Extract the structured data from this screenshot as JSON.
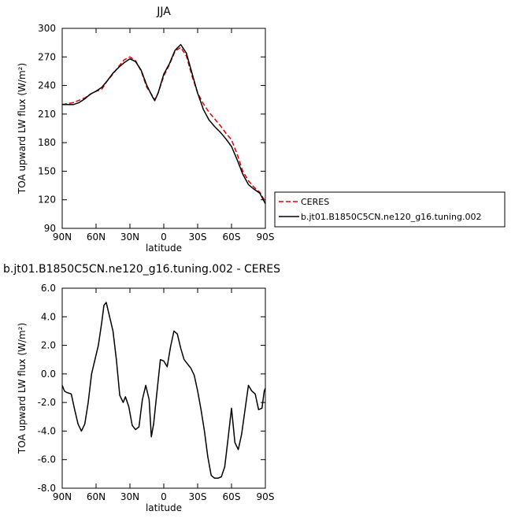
{
  "chart_data": [
    {
      "type": "line",
      "title": "JJA",
      "xlabel": "latitude",
      "ylabel": "TOA upward LW flux (W/m²)",
      "ylim": [
        90,
        300
      ],
      "xlim": [
        90,
        -90
      ],
      "x_ticks": [
        90,
        60,
        30,
        0,
        -30,
        -60,
        -90
      ],
      "x_tick_labels": [
        "90N",
        "60N",
        "30N",
        "0",
        "30S",
        "60S",
        "90S"
      ],
      "y_ticks": [
        90,
        120,
        150,
        180,
        210,
        240,
        270,
        300
      ],
      "y_tick_labels": [
        "90",
        "120",
        "150",
        "180",
        "210",
        "240",
        "270",
        "300"
      ],
      "legend_placement": "right",
      "series": [
        {
          "name": "CERES",
          "color": "#e00000",
          "dash": true,
          "x": [
            90,
            80,
            70,
            62,
            55,
            50,
            45,
            40,
            35,
            30,
            25,
            20,
            15,
            10,
            8,
            5,
            0,
            -5,
            -10,
            -15,
            -20,
            -25,
            -30,
            -35,
            -40,
            -45,
            -50,
            -55,
            -60,
            -65,
            -70,
            -75,
            -80,
            -85,
            -90
          ],
          "y": [
            220,
            222,
            227,
            233,
            236,
            245,
            252,
            260,
            267,
            270,
            266,
            255,
            238,
            229,
            225,
            232,
            250,
            262,
            276,
            280,
            271,
            250,
            232,
            221,
            212,
            205,
            198,
            190,
            183,
            168,
            150,
            140,
            133,
            128,
            118
          ]
        },
        {
          "name": "b.jt01.B1850C5CN.ne120_g16.tuning.002",
          "color": "#000000",
          "dash": false,
          "x": [
            90,
            80,
            75,
            70,
            65,
            60,
            55,
            50,
            45,
            40,
            35,
            30,
            25,
            20,
            15,
            10,
            8,
            5,
            0,
            -5,
            -10,
            -15,
            -20,
            -25,
            -30,
            -35,
            -40,
            -45,
            -50,
            -55,
            -60,
            -65,
            -70,
            -75,
            -80,
            -85,
            -90
          ],
          "y": [
            220,
            220,
            222,
            226,
            231,
            234,
            238,
            245,
            253,
            259,
            264,
            268,
            265,
            256,
            240,
            228,
            224,
            232,
            252,
            263,
            277,
            283,
            274,
            253,
            232,
            215,
            204,
            197,
            191,
            184,
            176,
            162,
            147,
            136,
            131,
            127,
            116
          ]
        }
      ]
    },
    {
      "type": "line",
      "title": "b.jt01.B1850C5CN.ne120_g16.tuning.002 - CERES",
      "xlabel": "latitude",
      "ylabel": "TOA upward LW flux (W/m²)",
      "ylim": [
        -8.0,
        6.0
      ],
      "xlim": [
        90,
        -90
      ],
      "x_ticks": [
        90,
        60,
        30,
        0,
        -30,
        -60,
        -90
      ],
      "x_tick_labels": [
        "90N",
        "60N",
        "30N",
        "0",
        "30S",
        "60S",
        "90S"
      ],
      "y_ticks": [
        6,
        4,
        2,
        0,
        -2,
        -4,
        -6,
        -8
      ],
      "y_tick_labels": [
        "6.0",
        "4.0",
        "2.0",
        "0.0",
        "-2.0",
        "-4.0",
        "-6.0",
        "-8.0"
      ],
      "series": [
        {
          "color": "#000000",
          "x": [
            90,
            88,
            86,
            82,
            79,
            76,
            73,
            70,
            67,
            64,
            61,
            58,
            55,
            53,
            51,
            48,
            45,
            42,
            39,
            36,
            34,
            31,
            28,
            25,
            22,
            19,
            16,
            13,
            11,
            9,
            5,
            3,
            0,
            -3,
            -6,
            -9,
            -12,
            -15,
            -18,
            -21,
            -24,
            -27,
            -30,
            -33,
            -36,
            -39,
            -42,
            -45,
            -48,
            -51,
            -54,
            -57,
            -60,
            -63,
            -66,
            -69,
            -72,
            -75,
            -78,
            -81,
            -84,
            -87,
            -89,
            -90
          ],
          "y": [
            -0.8,
            -1.2,
            -1.3,
            -1.4,
            -2.5,
            -3.5,
            -4.0,
            -3.5,
            -2.0,
            0.0,
            1.0,
            2.0,
            3.6,
            4.8,
            5.0,
            4.0,
            3.0,
            1.0,
            -1.5,
            -2.0,
            -1.6,
            -2.3,
            -3.6,
            -3.9,
            -3.7,
            -1.8,
            -0.8,
            -1.8,
            -4.4,
            -3.5,
            -0.5,
            1.0,
            0.9,
            0.5,
            1.9,
            3.0,
            2.8,
            1.8,
            1.0,
            0.7,
            0.4,
            -0.1,
            -1.2,
            -2.5,
            -4.0,
            -5.8,
            -7.1,
            -7.3,
            -7.3,
            -7.2,
            -6.5,
            -4.5,
            -2.4,
            -4.8,
            -5.3,
            -4.2,
            -2.5,
            -0.8,
            -1.2,
            -1.4,
            -2.5,
            -2.4,
            -1.2,
            -1.0
          ]
        }
      ]
    }
  ]
}
